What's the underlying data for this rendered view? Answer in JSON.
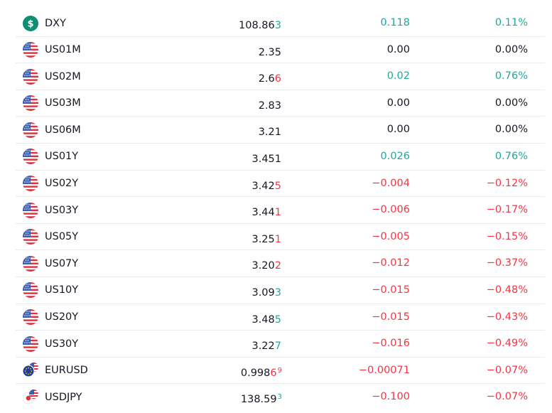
{
  "colors": {
    "up": "#26a69a",
    "down": "#f23645",
    "text": "#131722",
    "divider": "#e9ebef",
    "dxy_badge": "#0e8f73"
  },
  "rows": [
    {
      "symbol": "DXY",
      "icon": "dollar-badge-icon",
      "last_main": "108.86",
      "last_tick": "3",
      "last_sup": "",
      "tick_dir": "up",
      "change": "0.118",
      "change_pct": "0.11%",
      "dir": "up"
    },
    {
      "symbol": "US01M",
      "icon": "us-flag-icon",
      "last_main": "2.35",
      "last_tick": "",
      "last_sup": "",
      "tick_dir": "",
      "change": "0.00",
      "change_pct": "0.00%",
      "dir": "flat"
    },
    {
      "symbol": "US02M",
      "icon": "us-flag-icon",
      "last_main": "2.6",
      "last_tick": "6",
      "last_sup": "",
      "tick_dir": "down",
      "change": "0.02",
      "change_pct": "0.76%",
      "dir": "up"
    },
    {
      "symbol": "US03M",
      "icon": "us-flag-icon",
      "last_main": "2.83",
      "last_tick": "",
      "last_sup": "",
      "tick_dir": "",
      "change": "0.00",
      "change_pct": "0.00%",
      "dir": "flat"
    },
    {
      "symbol": "US06M",
      "icon": "us-flag-icon",
      "last_main": "3.21",
      "last_tick": "",
      "last_sup": "",
      "tick_dir": "",
      "change": "0.00",
      "change_pct": "0.00%",
      "dir": "flat"
    },
    {
      "symbol": "US01Y",
      "icon": "us-flag-icon",
      "last_main": "3.451",
      "last_tick": "",
      "last_sup": "",
      "tick_dir": "",
      "change": "0.026",
      "change_pct": "0.76%",
      "dir": "up"
    },
    {
      "symbol": "US02Y",
      "icon": "us-flag-icon",
      "last_main": "3.42",
      "last_tick": "5",
      "last_sup": "",
      "tick_dir": "down",
      "change": "−0.004",
      "change_pct": "−0.12%",
      "dir": "down"
    },
    {
      "symbol": "US03Y",
      "icon": "us-flag-icon",
      "last_main": "3.44",
      "last_tick": "1",
      "last_sup": "",
      "tick_dir": "down",
      "change": "−0.006",
      "change_pct": "−0.17%",
      "dir": "down"
    },
    {
      "symbol": "US05Y",
      "icon": "us-flag-icon",
      "last_main": "3.25",
      "last_tick": "1",
      "last_sup": "",
      "tick_dir": "down",
      "change": "−0.005",
      "change_pct": "−0.15%",
      "dir": "down"
    },
    {
      "symbol": "US07Y",
      "icon": "us-flag-icon",
      "last_main": "3.20",
      "last_tick": "2",
      "last_sup": "",
      "tick_dir": "down",
      "change": "−0.012",
      "change_pct": "−0.37%",
      "dir": "down"
    },
    {
      "symbol": "US10Y",
      "icon": "us-flag-icon",
      "last_main": "3.09",
      "last_tick": "3",
      "last_sup": "",
      "tick_dir": "up",
      "change": "−0.015",
      "change_pct": "−0.48%",
      "dir": "down"
    },
    {
      "symbol": "US20Y",
      "icon": "us-flag-icon",
      "last_main": "3.48",
      "last_tick": "5",
      "last_sup": "",
      "tick_dir": "up",
      "change": "−0.015",
      "change_pct": "−0.43%",
      "dir": "down"
    },
    {
      "symbol": "US30Y",
      "icon": "us-flag-icon",
      "last_main": "3.22",
      "last_tick": "7",
      "last_sup": "",
      "tick_dir": "up",
      "change": "−0.016",
      "change_pct": "−0.49%",
      "dir": "down"
    },
    {
      "symbol": "EURUSD",
      "icon": "eu-us-flag-icon",
      "last_main": "0.998",
      "last_tick": "6",
      "last_sup": "9",
      "tick_dir": "down",
      "change": "−0.00071",
      "change_pct": "−0.07%",
      "dir": "down"
    },
    {
      "symbol": "USDJPY",
      "icon": "us-jp-flag-icon",
      "last_main": "138.59",
      "last_tick": "",
      "last_sup": "3",
      "tick_dir": "up",
      "change": "−0.100",
      "change_pct": "−0.07%",
      "dir": "down"
    }
  ]
}
